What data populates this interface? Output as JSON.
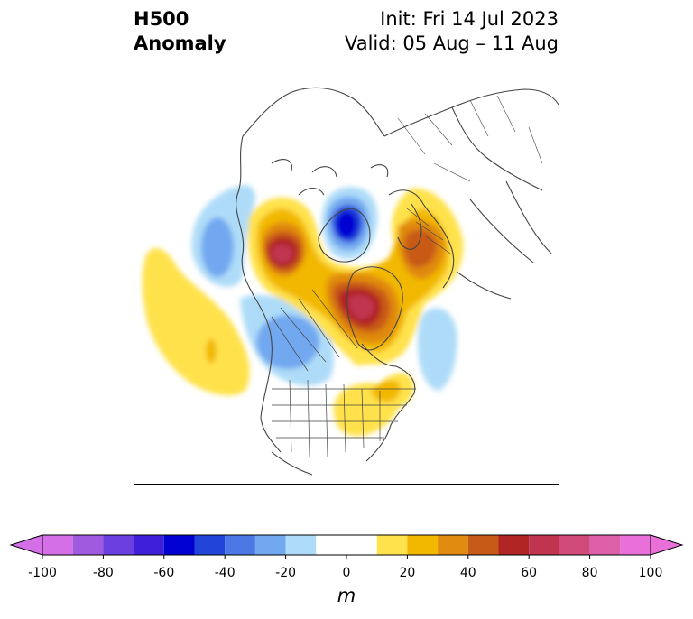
{
  "header": {
    "title_line1": "H500",
    "title_line2": "Anomaly",
    "init": "Init: Fri 14 Jul 2023",
    "valid": "Valid: 05 Aug – 11 Aug"
  },
  "colorbar": {
    "ticks": [
      "-100",
      "-80",
      "-60",
      "-40",
      "-20",
      "0",
      "20",
      "40",
      "60",
      "80",
      "100"
    ],
    "unit": "m",
    "levels": [
      -100,
      -90,
      -80,
      -70,
      -60,
      -50,
      -40,
      -30,
      -20,
      -10,
      10,
      20,
      30,
      40,
      50,
      60,
      70,
      80,
      90,
      100
    ],
    "colors": [
      "#d46fe8",
      "#a05ae0",
      "#6b3fe0",
      "#3f1fd8",
      "#0000d2",
      "#2344d8",
      "#4c78e6",
      "#72a8f0",
      "#aedcf8",
      "#ffffff",
      "#ffe24c",
      "#f2b800",
      "#e08a10",
      "#c85a18",
      "#b02424",
      "#c03450",
      "#d04a7a",
      "#dc5fa8",
      "#e870d8"
    ]
  },
  "map": {
    "projection": "north-polar-stereographic",
    "features": [
      "coastlines",
      "country-borders",
      "us-state-borders",
      "canada-province-borders"
    ]
  }
}
